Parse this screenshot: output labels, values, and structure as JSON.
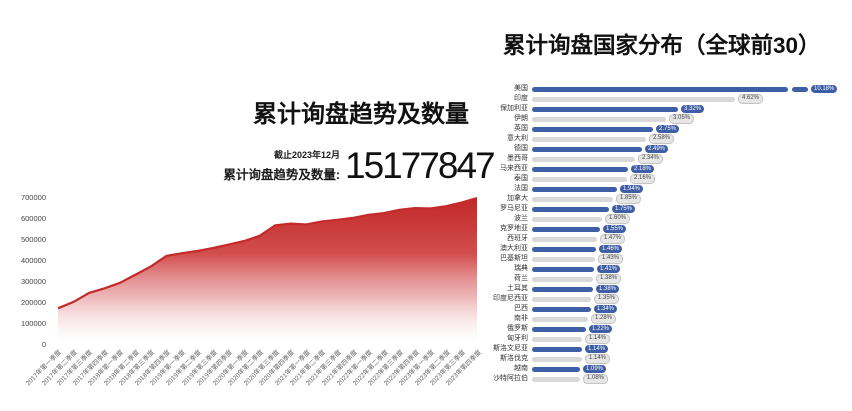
{
  "page": {
    "background": "#ffffff"
  },
  "colors": {
    "bar_blue": "#3e5fa5",
    "bar_gray": "#d9d9d9",
    "pill_blue_bg": "#3e5fa5",
    "pill_blue_text": "#ffffff",
    "pill_gray_bg": "#e6e6e6",
    "pill_gray_border": "#c4c4c4",
    "pill_gray_text": "#444444",
    "area_red": "#c62828",
    "trend_line_red": "#c42a2a"
  },
  "chart_data": [
    {
      "type": "area",
      "title": "累计询盘趋势及数量",
      "annotation": {
        "as_of": "截止2023年12月",
        "caption": "累计询盘趋势及数量:",
        "total": "15177847"
      },
      "x": [
        "2017年第一季度",
        "2017年第二季度",
        "2017年第三季度",
        "2017年第四季度",
        "2018年第一季度",
        "2018年第二季度",
        "2018年第三季度",
        "2018年第四季度",
        "2019年第一季度",
        "2019年第二季度",
        "2019年第三季度",
        "2019年第四季度",
        "2020年第一季度",
        "2020年第二季度",
        "2020年第三季度",
        "2020年第四季度",
        "2021年第一季度",
        "2021年第二季度",
        "2021年第三季度",
        "2021年第四季度",
        "2022年第一季度",
        "2022年第二季度",
        "2022年第三季度",
        "2022年第四季度",
        "2023年第一季度",
        "2023年第二季度",
        "2023年第三季度",
        "2023年第四季度"
      ],
      "values": [
        175000,
        205000,
        248000,
        270000,
        296000,
        335000,
        375000,
        425000,
        437000,
        448000,
        462000,
        478000,
        495000,
        520000,
        570000,
        578000,
        574000,
        588000,
        596000,
        605000,
        620000,
        628000,
        644000,
        652000,
        650000,
        661000,
        678000,
        700000
      ],
      "y_ticks": [
        700000,
        600000,
        500000,
        400000,
        300000,
        200000,
        100000,
        0
      ],
      "ylim": [
        0,
        700000
      ],
      "grid": false,
      "legend": "none",
      "area_color": "#c62828"
    },
    {
      "type": "bar",
      "orientation": "horizontal",
      "title": "累计询盘国家分布（全球前30）",
      "categories": [
        "美国",
        "印度",
        "保加利亚",
        "伊朗",
        "英国",
        "意大利",
        "德国",
        "墨西哥",
        "马来西亚",
        "泰国",
        "法国",
        "加拿大",
        "罗马尼亚",
        "波兰",
        "克罗地亚",
        "西班牙",
        "澳大利亚",
        "巴基斯坦",
        "瑞典",
        "荷兰",
        "土耳其",
        "印度尼西亚",
        "巴西",
        "南非",
        "俄罗斯",
        "匈牙利",
        "斯洛文尼亚",
        "斯洛伐克",
        "越南",
        "沙特阿拉伯"
      ],
      "values": [
        10.18,
        4.62,
        3.32,
        3.05,
        2.75,
        2.58,
        2.49,
        2.34,
        2.18,
        2.16,
        1.94,
        1.85,
        1.75,
        1.6,
        1.55,
        1.47,
        1.46,
        1.43,
        1.41,
        1.38,
        1.38,
        1.35,
        1.34,
        1.28,
        1.22,
        1.14,
        1.14,
        1.14,
        1.09,
        1.08
      ],
      "value_labels": [
        "10.18%",
        "4.62%",
        "3.32%",
        "3.05%",
        "2.75%",
        "2.58%",
        "2.49%",
        "2.34%",
        "2.18%",
        "2.16%",
        "1.94%",
        "1.85%",
        "1.75%",
        "1.60%",
        "1.55%",
        "1.47%",
        "1.46%",
        "1.43%",
        "1.41%",
        "1.38%",
        "1.38%",
        "1.35%",
        "1.34%",
        "1.28%",
        "1.22%",
        "1.14%",
        "1.14%",
        "1.14%",
        "1.09%",
        "1.08%"
      ],
      "bar_color_alternation": "odd rows blue, even rows gray",
      "broken_bar_category": "美国",
      "legend": "none"
    }
  ]
}
